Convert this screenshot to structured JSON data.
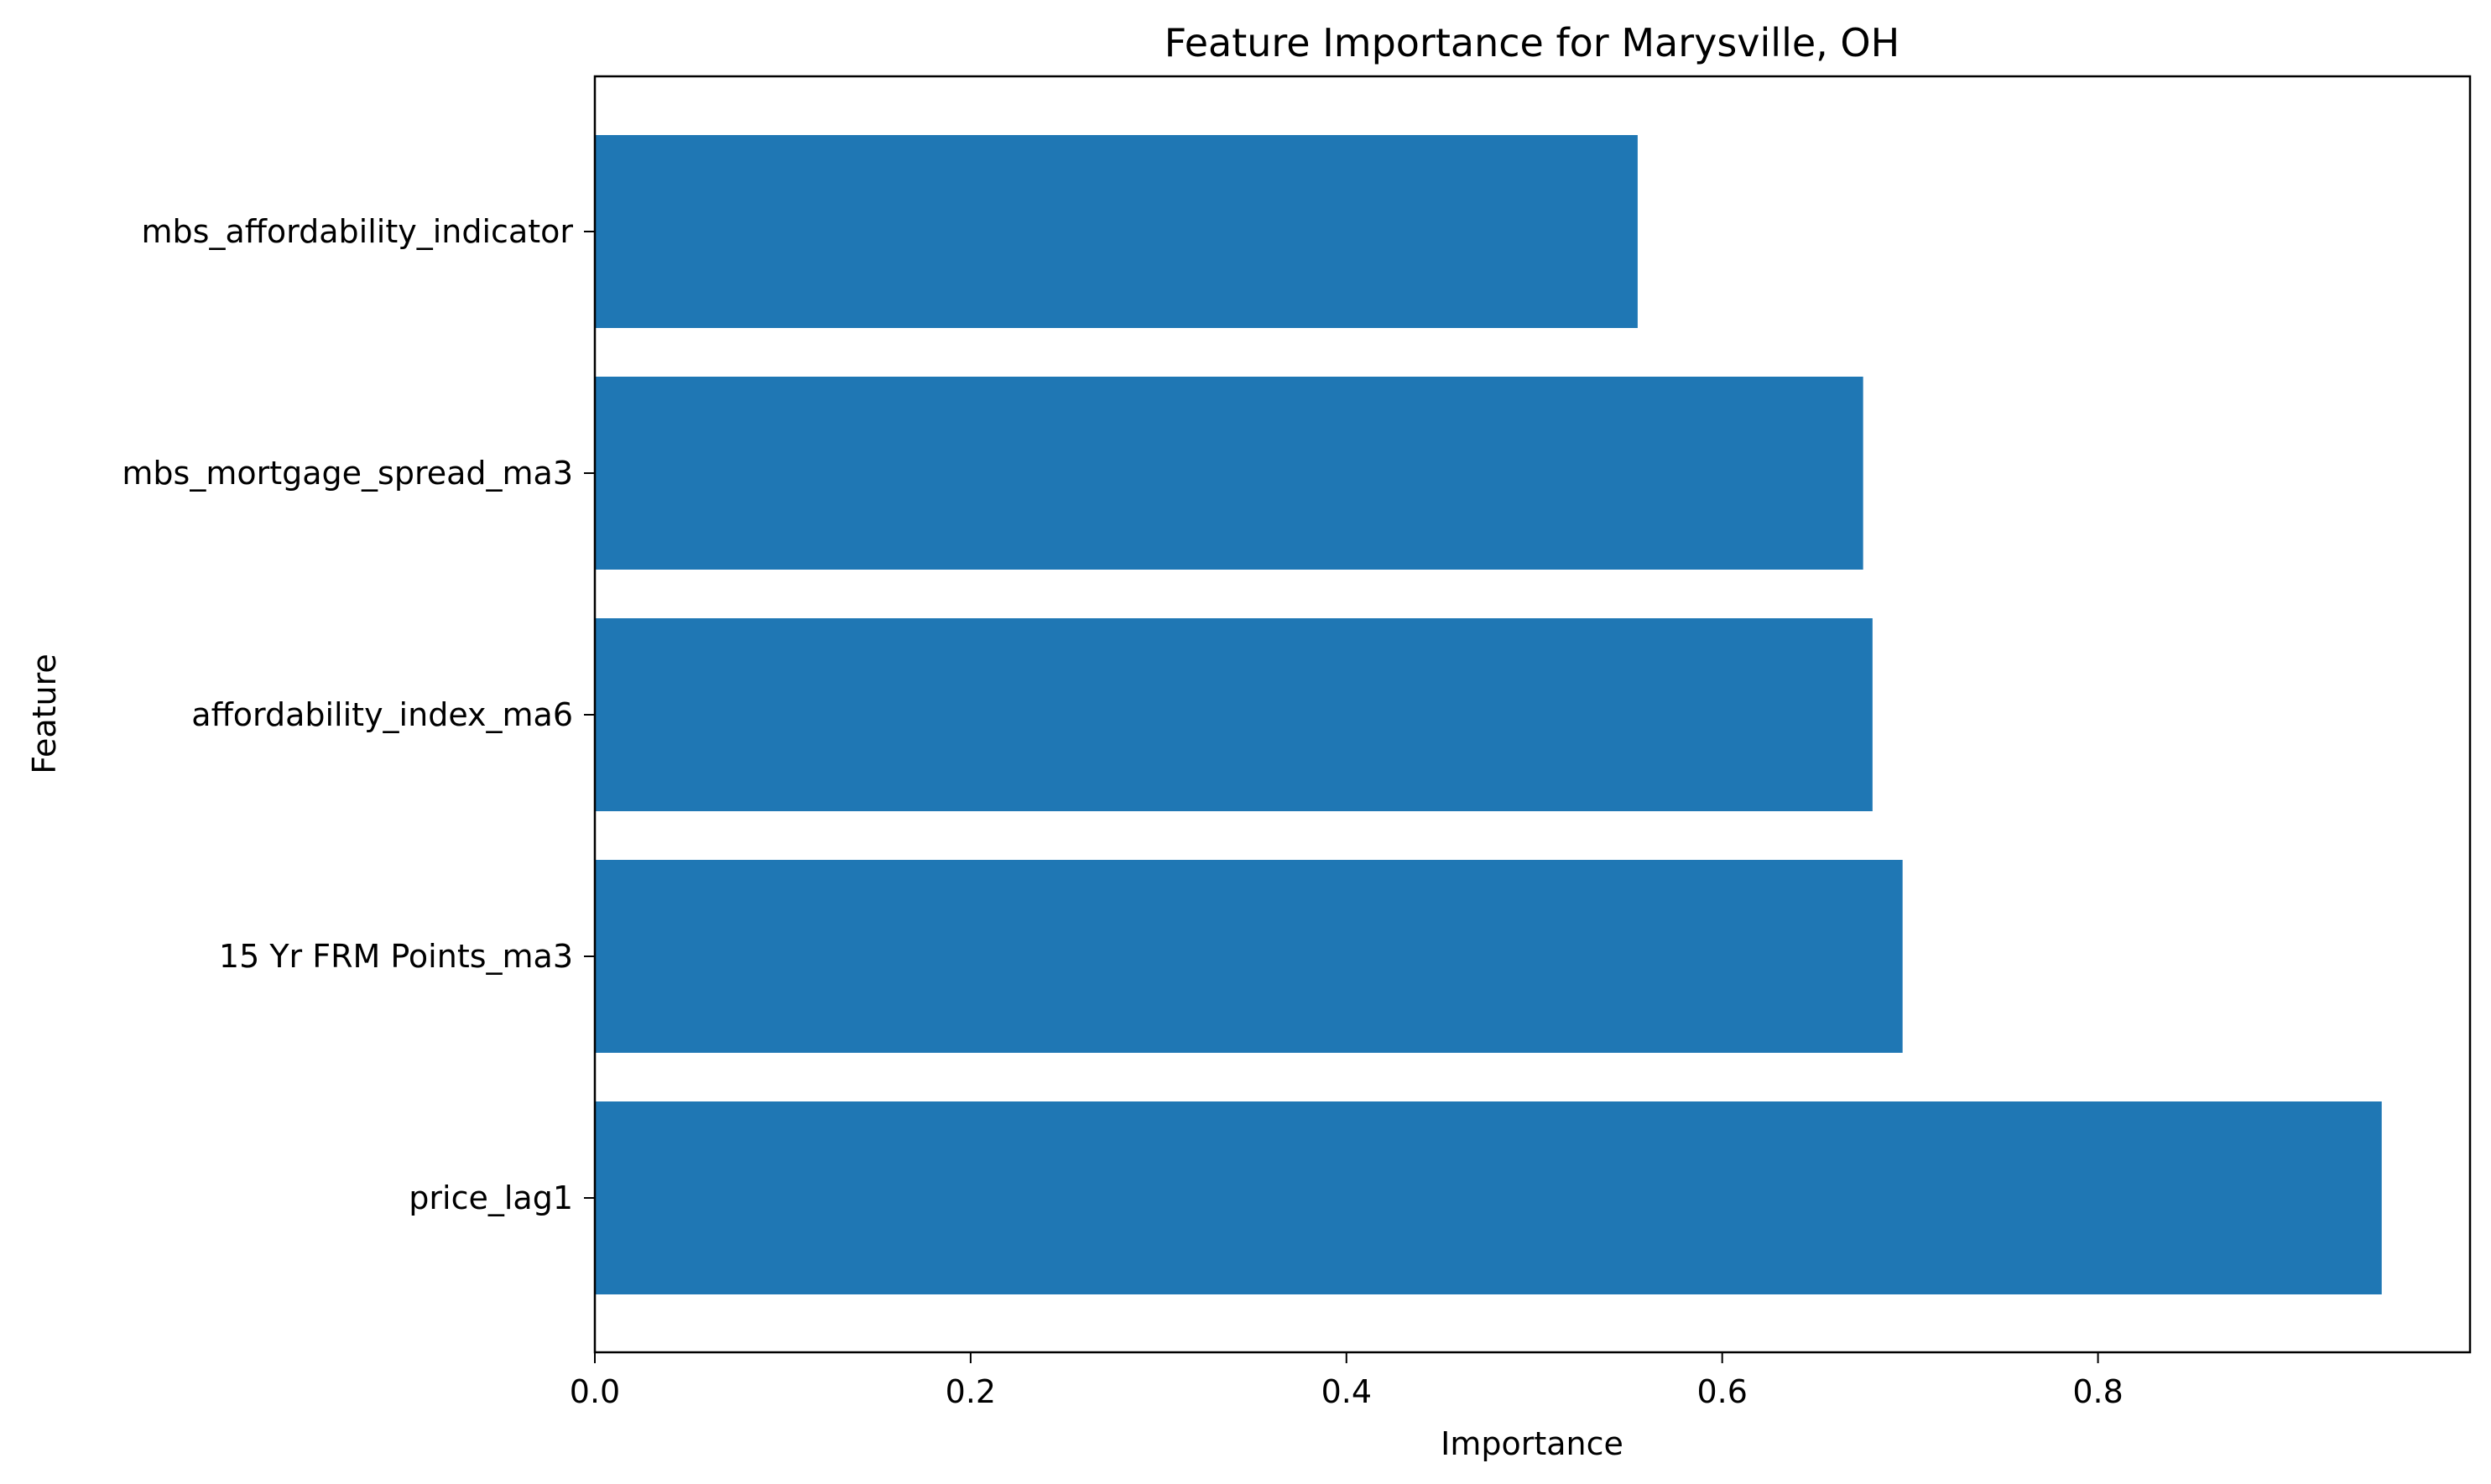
{
  "chart_data": {
    "type": "bar",
    "orientation": "horizontal",
    "title": "Feature Importance for Marysville, OH",
    "xlabel": "Importance",
    "ylabel": "Feature",
    "categories": [
      "price_lag1",
      "15 Yr FRM Points_ma3",
      "affordability_index_ma6",
      "mbs_mortgage_spread_ma3",
      "mbs_affordability_indicator"
    ],
    "values": [
      0.951,
      0.696,
      0.68,
      0.675,
      0.555
    ],
    "xlim": [
      0.0,
      0.998
    ],
    "xticks": [
      0.0,
      0.2,
      0.4,
      0.6,
      0.8
    ],
    "xtick_labels": [
      "0.0",
      "0.2",
      "0.4",
      "0.6",
      "0.8"
    ],
    "bar_color": "#1f77b4",
    "grid": false,
    "legend": "none"
  }
}
